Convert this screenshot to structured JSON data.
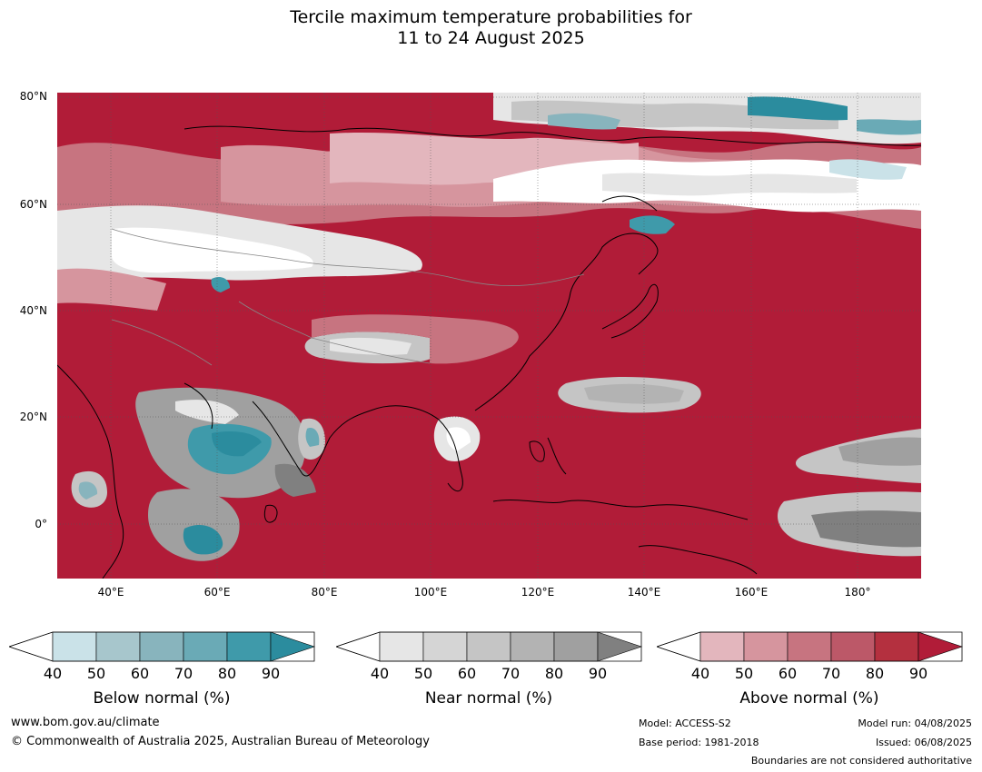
{
  "title_line1": "Tercile maximum temperature probabilities for",
  "title_line2": "11 to 24 August 2025",
  "lat_labels": [
    "80°N",
    "60°N",
    "40°N",
    "20°N",
    "0°"
  ],
  "lon_labels": [
    "40°E",
    "60°E",
    "80°E",
    "100°E",
    "120°E",
    "140°E",
    "160°E",
    "180°"
  ],
  "legends": [
    {
      "caption": "Below normal (%)",
      "ticks": [
        "40",
        "50",
        "60",
        "70",
        "80",
        "90"
      ],
      "colors": [
        "#ffffff",
        "#cae2e8",
        "#a7c6cc",
        "#88b4bd",
        "#6aaab6",
        "#3f9aaa",
        "#2b8c9e"
      ]
    },
    {
      "caption": "Near normal (%)",
      "ticks": [
        "40",
        "50",
        "60",
        "70",
        "80",
        "90"
      ],
      "colors": [
        "#ffffff",
        "#e6e6e6",
        "#d5d5d5",
        "#c5c5c5",
        "#b3b3b3",
        "#a0a0a0",
        "#808080"
      ]
    },
    {
      "caption": "Above normal (%)",
      "ticks": [
        "40",
        "50",
        "60",
        "70",
        "80",
        "90"
      ],
      "colors": [
        "#ffffff",
        "#e3b6bd",
        "#d6959e",
        "#c77480",
        "#bc5868",
        "#b4303f",
        "#b11c38"
      ]
    }
  ],
  "footer": {
    "website": "www.bom.gov.au/climate",
    "copyright": "© Commonwealth of Australia 2025, Australian Bureau of Meteorology",
    "model": "Model: ACCESS-S2",
    "base_period": "Base period: 1981-2018",
    "model_run": "Model run: 04/08/2025",
    "issued": "Issued: 06/08/2025",
    "disclaimer": "Boundaries are not considered authoritative"
  }
}
